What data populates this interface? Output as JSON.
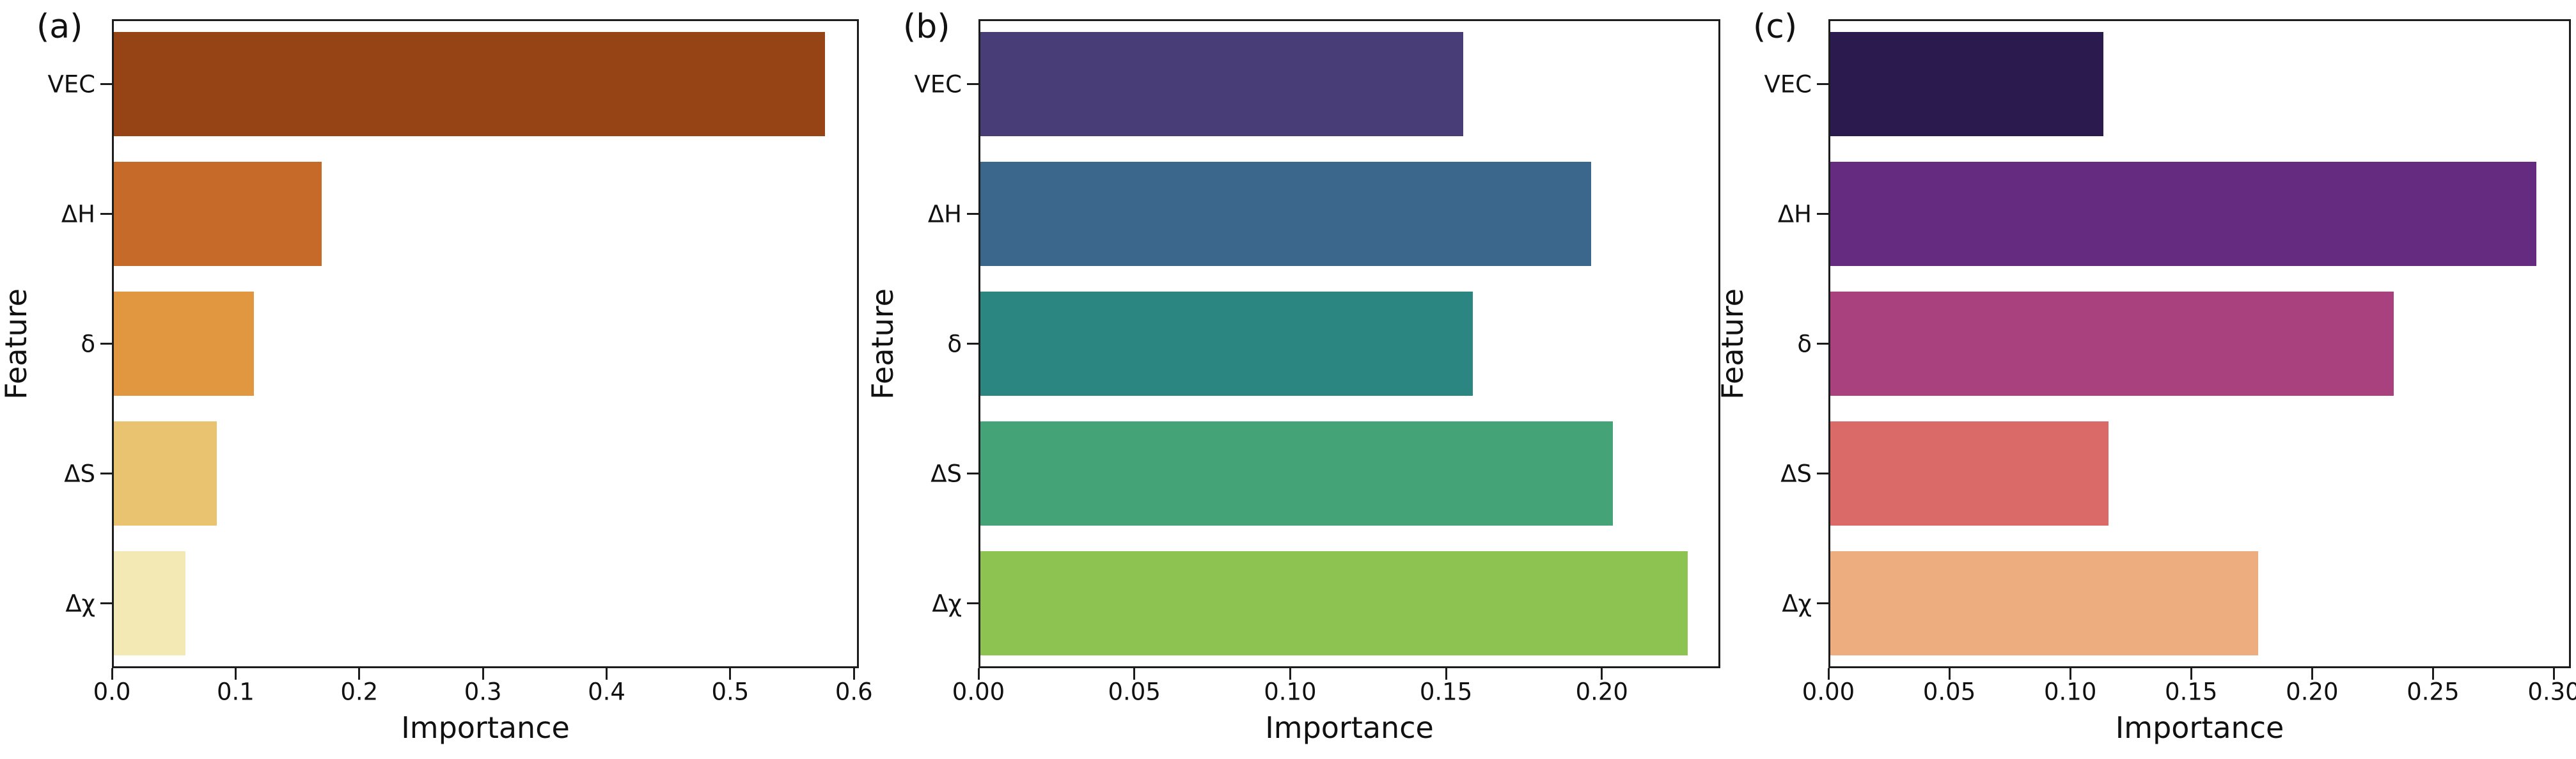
{
  "figure": {
    "background_color": "#ffffff",
    "text_color": "#111111",
    "spine_color": "#1c1c1c"
  },
  "chart_data": [
    {
      "type": "bar",
      "orientation": "horizontal",
      "panel_label": "(a)",
      "xlabel": "Importance",
      "ylabel": "Feature",
      "categories": [
        "VEC",
        "ΔH",
        "δ",
        "ΔS",
        "Δχ"
      ],
      "values": [
        0.575,
        0.168,
        0.113,
        0.083,
        0.058
      ],
      "bar_colors": [
        "#964416",
        "#C66A29",
        "#E0973F",
        "#E9C36F",
        "#F3E9B4"
      ],
      "xlim": [
        0,
        0.604
      ],
      "xticks": {
        "values": [
          0.0,
          0.1,
          0.2,
          0.3,
          0.4,
          0.5,
          0.6
        ],
        "labels": [
          "0.0",
          "0.1",
          "0.2",
          "0.3",
          "0.4",
          "0.5",
          "0.6"
        ]
      },
      "grid": false,
      "legend": false
    },
    {
      "type": "bar",
      "orientation": "horizontal",
      "panel_label": "(b)",
      "xlabel": "Importance",
      "ylabel": "Feature",
      "categories": [
        "VEC",
        "ΔH",
        "δ",
        "ΔS",
        "Δχ"
      ],
      "values": [
        0.155,
        0.196,
        0.158,
        0.203,
        0.227
      ],
      "bar_colors": [
        "#483D77",
        "#3B678C",
        "#2B8681",
        "#44A477",
        "#8DC351"
      ],
      "xlim": [
        0,
        0.238
      ],
      "xticks": {
        "values": [
          0.0,
          0.05,
          0.1,
          0.15,
          0.2
        ],
        "labels": [
          "0.00",
          "0.05",
          "0.10",
          "0.15",
          "0.20"
        ]
      },
      "grid": false,
      "legend": false
    },
    {
      "type": "bar",
      "orientation": "horizontal",
      "panel_label": "(c)",
      "xlabel": "Importance",
      "ylabel": "Feature",
      "categories": [
        "VEC",
        "ΔH",
        "δ",
        "ΔS",
        "Δχ"
      ],
      "values": [
        0.113,
        0.292,
        0.233,
        0.115,
        0.177
      ],
      "bar_colors": [
        "#2B1A4E",
        "#642B80",
        "#A8417D",
        "#D96A68",
        "#EEAD7E"
      ],
      "xlim": [
        0,
        0.307
      ],
      "xticks": {
        "values": [
          0.0,
          0.05,
          0.1,
          0.15,
          0.2,
          0.25,
          0.3
        ],
        "labels": [
          "0.00",
          "0.05",
          "0.10",
          "0.15",
          "0.20",
          "0.25",
          "0.30"
        ]
      },
      "grid": false,
      "legend": false
    }
  ]
}
